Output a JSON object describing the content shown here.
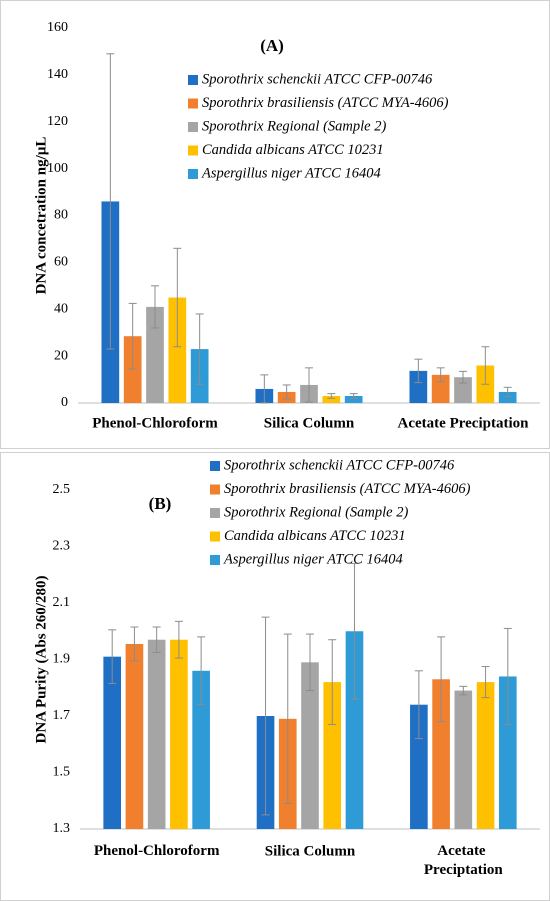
{
  "chart_data": [
    {
      "type": "bar",
      "title": "(A)",
      "y_label": "DNA concetration ng/µL",
      "categories": [
        "Phenol-Chloroform",
        "Silica Column",
        "Acetate Preciptation"
      ],
      "series": [
        {
          "name": "Sporothrix schenckii ATCC CFP-00746",
          "color": "#1f6fc5",
          "values": [
            86,
            6,
            13.7
          ],
          "errors": [
            63,
            6,
            5
          ]
        },
        {
          "name": "Sporothrix brasiliensis (ATCC MYA-4606)",
          "color": "#f07f2e",
          "values": [
            28.5,
            4.7,
            12
          ],
          "errors": [
            14,
            3,
            3
          ]
        },
        {
          "name": "Sporothrix Regional (Sample 2)",
          "color": "#a5a5a5",
          "values": [
            41,
            7.7,
            11
          ],
          "errors": [
            9,
            7.3,
            2.5
          ]
        },
        {
          "name": "Candida albicans ATCC 10231",
          "color": "#ffc000",
          "values": [
            45,
            3,
            16
          ],
          "errors": [
            21,
            1,
            8
          ]
        },
        {
          "name": "Aspergillus niger ATCC 16404",
          "color": "#2e9bd6",
          "values": [
            23,
            3,
            4.7
          ],
          "errors": [
            15,
            1,
            2
          ]
        }
      ],
      "ylim": [
        0,
        160
      ],
      "yticks": [
        0,
        20,
        40,
        60,
        80,
        100,
        120,
        140,
        160
      ],
      "grid": false,
      "legend": "upper right"
    },
    {
      "type": "bar",
      "title": "(B)",
      "y_label": "DNA Purity (Abs 260/280)",
      "categories": [
        "Phenol-Chloroform",
        "Silica Column",
        "Acetate Preciptation"
      ],
      "series": [
        {
          "name": "Sporothrix schenckii ATCC CFP-00746",
          "color": "#1f6fc5",
          "values": [
            1.91,
            1.7,
            1.74
          ],
          "errors": [
            0.095,
            0.35,
            0.12
          ]
        },
        {
          "name": "Sporothrix brasiliensis (ATCC MYA-4606)",
          "color": "#f07f2e",
          "values": [
            1.955,
            1.69,
            1.83
          ],
          "errors": [
            0.06,
            0.3,
            0.15
          ]
        },
        {
          "name": "Sporothrix Regional (Sample 2)",
          "color": "#a5a5a5",
          "values": [
            1.97,
            1.89,
            1.79
          ],
          "errors": [
            0.045,
            0.1,
            0.015
          ]
        },
        {
          "name": "Candida albicans ATCC 10231",
          "color": "#ffc000",
          "values": [
            1.97,
            1.82,
            1.82
          ],
          "errors": [
            0.065,
            0.15,
            0.055
          ]
        },
        {
          "name": "Aspergillus niger ATCC 16404",
          "color": "#2e9bd6",
          "values": [
            1.86,
            2.0,
            1.84
          ],
          "errors": [
            0.12,
            0.24,
            0.17
          ]
        }
      ],
      "ylim": [
        1.3,
        2.5
      ],
      "yticks": [
        1.3,
        1.5,
        1.7,
        1.9,
        2.1,
        2.3,
        2.5
      ],
      "grid": false,
      "legend": "upper right"
    }
  ]
}
